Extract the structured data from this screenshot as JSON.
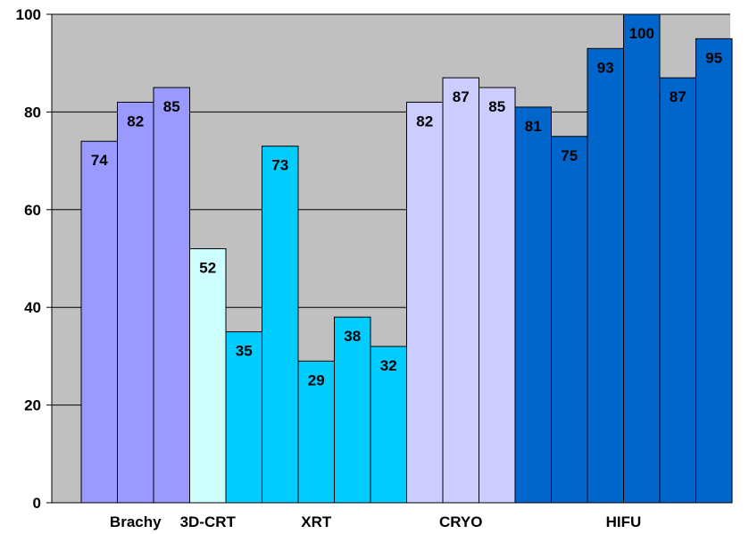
{
  "chart_data": {
    "type": "bar",
    "ylim": [
      0,
      100
    ],
    "yticks": [
      0,
      20,
      40,
      60,
      80,
      100
    ],
    "grid": true,
    "plot_background": "#c0c0c0",
    "bars": [
      {
        "group": "Brachy",
        "value": 74,
        "color": "#9999ff"
      },
      {
        "group": "Brachy",
        "value": 82,
        "color": "#9999ff"
      },
      {
        "group": "Brachy",
        "value": 85,
        "color": "#9999ff"
      },
      {
        "group": "3D-CRT",
        "value": 52,
        "color": "#ccffff"
      },
      {
        "group": "XRT",
        "value": 35,
        "color": "#00ccff"
      },
      {
        "group": "XRT",
        "value": 73,
        "color": "#00ccff"
      },
      {
        "group": "XRT",
        "value": 29,
        "color": "#00ccff"
      },
      {
        "group": "XRT",
        "value": 38,
        "color": "#00ccff"
      },
      {
        "group": "XRT",
        "value": 32,
        "color": "#00ccff"
      },
      {
        "group": "CRYO",
        "value": 82,
        "color": "#ccccff"
      },
      {
        "group": "CRYO",
        "value": 87,
        "color": "#ccccff"
      },
      {
        "group": "CRYO",
        "value": 85,
        "color": "#ccccff"
      },
      {
        "group": "HIFU",
        "value": 81,
        "color": "#0066cc"
      },
      {
        "group": "HIFU",
        "value": 75,
        "color": "#0066cc"
      },
      {
        "group": "HIFU",
        "value": 93,
        "color": "#0066cc"
      },
      {
        "group": "HIFU",
        "value": 100,
        "color": "#0066cc"
      },
      {
        "group": "HIFU",
        "value": 87,
        "color": "#0066cc"
      },
      {
        "group": "HIFU",
        "value": 95,
        "color": "#0066cc"
      }
    ],
    "category_labels": [
      "Brachy",
      "3D-CRT",
      "XRT",
      "CRYO",
      "HIFU"
    ]
  }
}
